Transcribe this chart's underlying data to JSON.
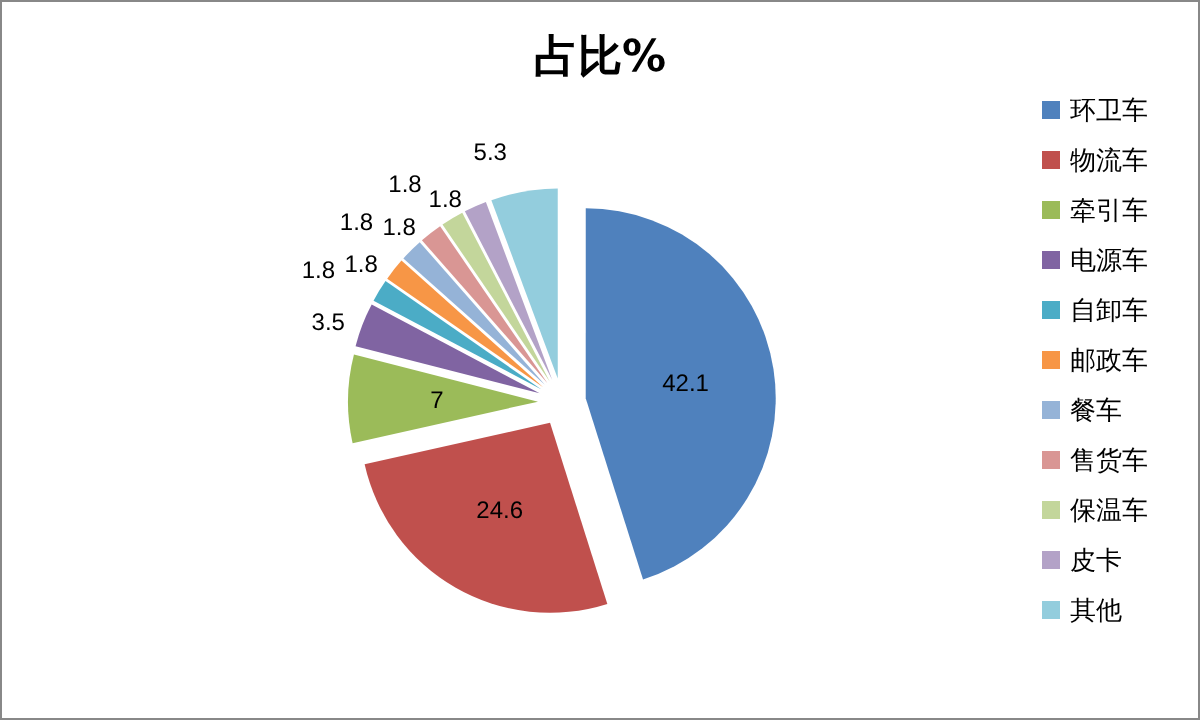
{
  "chart_data": {
    "type": "pie",
    "title": "占比%",
    "categories": [
      "环卫车",
      "物流车",
      "牵引车",
      "电源车",
      "自卸车",
      "邮政车",
      "餐车",
      "售货车",
      "保温车",
      "皮卡",
      "其他"
    ],
    "values": [
      42.1,
      24.6,
      7,
      3.5,
      1.8,
      1.8,
      1.8,
      1.8,
      1.8,
      1.8,
      5.3
    ],
    "colors": [
      "#4f81bd",
      "#c0504d",
      "#9bbb59",
      "#8064a2",
      "#4bacc6",
      "#f79646",
      "#95b3d7",
      "#d99694",
      "#c3d69b",
      "#b3a2c7",
      "#93cddd"
    ],
    "data_labels": true,
    "legend": "right"
  }
}
